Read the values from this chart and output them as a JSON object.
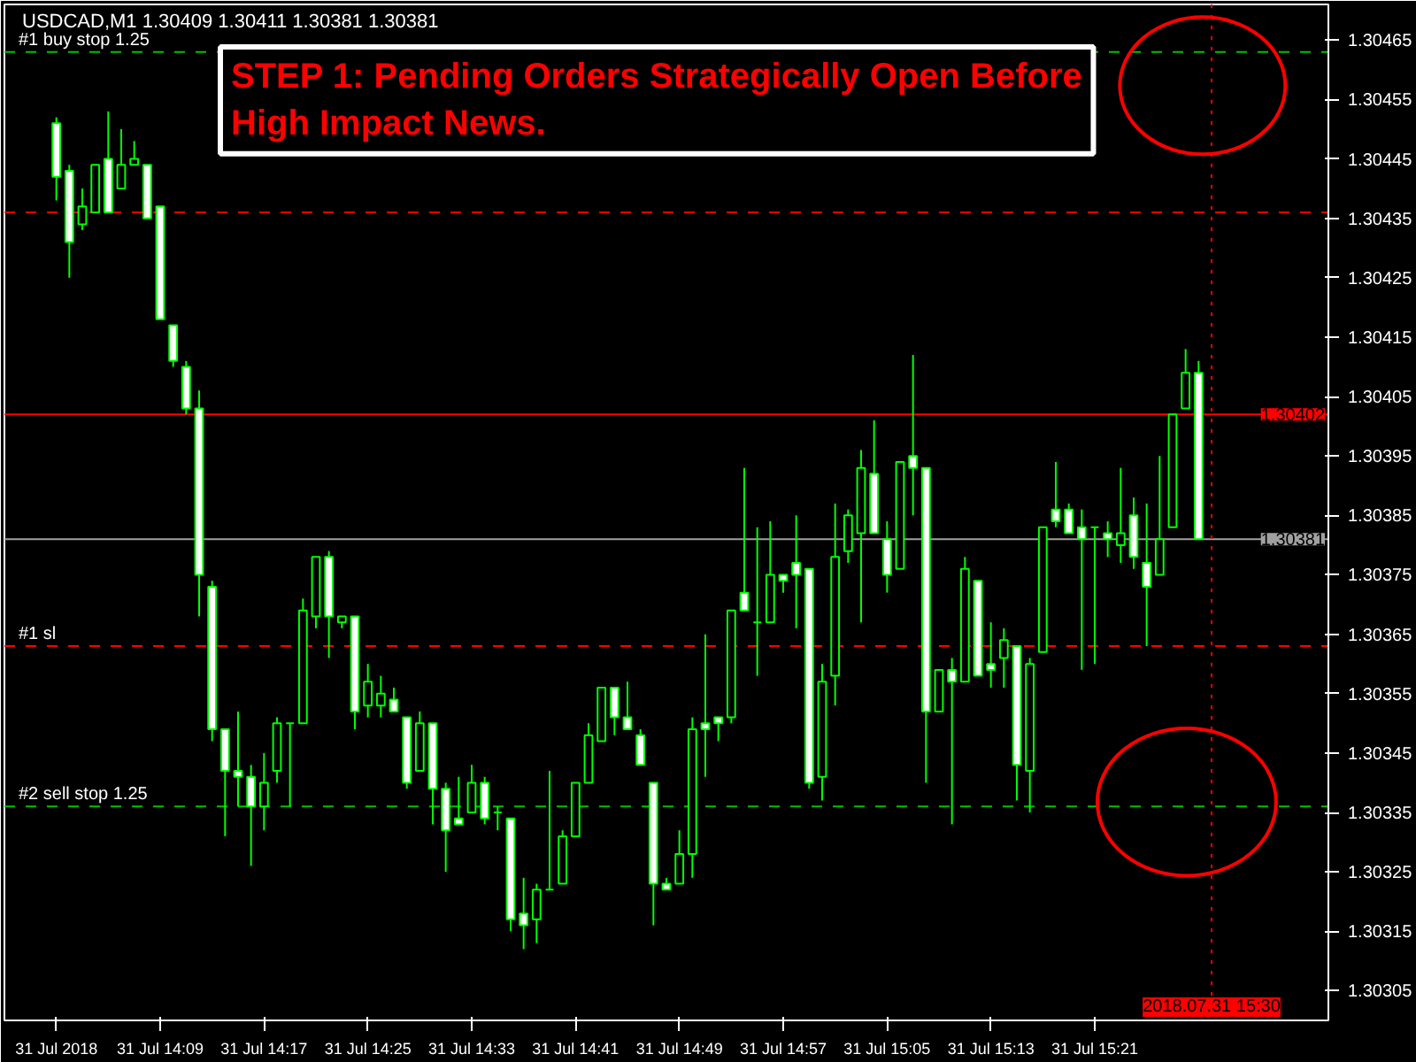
{
  "chart_data": {
    "type": "candlestick",
    "title": "USDCAD,M1  1.30409 1.30411 1.30381 1.30381",
    "annotations": [
      "STEP 1: Pending Orders Strategically Open Before High Impact News."
    ],
    "color": "#00ff00",
    "x": [
      "2018-07-31T14:01",
      "2018-07-31T14:02",
      "2018-07-31T14:03",
      "2018-07-31T14:04",
      "2018-07-31T14:05",
      "2018-07-31T14:06",
      "2018-07-31T14:07",
      "2018-07-31T14:08",
      "2018-07-31T14:09",
      "2018-07-31T14:10",
      "2018-07-31T14:11",
      "2018-07-31T14:12",
      "2018-07-31T14:13",
      "2018-07-31T14:14",
      "2018-07-31T14:15",
      "2018-07-31T14:16",
      "2018-07-31T14:17",
      "2018-07-31T14:18",
      "2018-07-31T14:19",
      "2018-07-31T14:20",
      "2018-07-31T14:21",
      "2018-07-31T14:22",
      "2018-07-31T14:23",
      "2018-07-31T14:24",
      "2018-07-31T14:25",
      "2018-07-31T14:26",
      "2018-07-31T14:27",
      "2018-07-31T14:28",
      "2018-07-31T14:29",
      "2018-07-31T14:30",
      "2018-07-31T14:31",
      "2018-07-31T14:32",
      "2018-07-31T14:33",
      "2018-07-31T14:34",
      "2018-07-31T14:35",
      "2018-07-31T14:36",
      "2018-07-31T14:37",
      "2018-07-31T14:38",
      "2018-07-31T14:39",
      "2018-07-31T14:40",
      "2018-07-31T14:41",
      "2018-07-31T14:42",
      "2018-07-31T14:43",
      "2018-07-31T14:44",
      "2018-07-31T14:45",
      "2018-07-31T14:46",
      "2018-07-31T14:47",
      "2018-07-31T14:48",
      "2018-07-31T14:49",
      "2018-07-31T14:50",
      "2018-07-31T14:51",
      "2018-07-31T14:52",
      "2018-07-31T14:53",
      "2018-07-31T14:54",
      "2018-07-31T14:55",
      "2018-07-31T14:56",
      "2018-07-31T14:57",
      "2018-07-31T14:58",
      "2018-07-31T14:59",
      "2018-07-31T15:00",
      "2018-07-31T15:01",
      "2018-07-31T15:02",
      "2018-07-31T15:03",
      "2018-07-31T15:04",
      "2018-07-31T15:05",
      "2018-07-31T15:06",
      "2018-07-31T15:07",
      "2018-07-31T15:08",
      "2018-07-31T15:09",
      "2018-07-31T15:10",
      "2018-07-31T15:11",
      "2018-07-31T15:12",
      "2018-07-31T15:13",
      "2018-07-31T15:14",
      "2018-07-31T15:15",
      "2018-07-31T15:16",
      "2018-07-31T15:17",
      "2018-07-31T15:18",
      "2018-07-31T15:19",
      "2018-07-31T15:20",
      "2018-07-31T15:21",
      "2018-07-31T15:22",
      "2018-07-31T15:23",
      "2018-07-31T15:24",
      "2018-07-31T15:25",
      "2018-07-31T15:26",
      "2018-07-31T15:27",
      "2018-07-31T15:28",
      "2018-07-31T15:29"
    ],
    "ohlc": [
      [
        1.30451,
        1.30452,
        1.30438,
        1.30442
      ],
      [
        1.30443,
        1.30444,
        1.30425,
        1.30431
      ],
      [
        1.30434,
        1.3044,
        1.30433,
        1.30437
      ],
      [
        1.30436,
        1.30444,
        1.30436,
        1.30444
      ],
      [
        1.30445,
        1.30453,
        1.30436,
        1.30436
      ],
      [
        1.3044,
        1.3045,
        1.3044,
        1.30444
      ],
      [
        1.30444,
        1.30448,
        1.30444,
        1.30445
      ],
      [
        1.30444,
        1.30444,
        1.30435,
        1.30435
      ],
      [
        1.30437,
        1.30437,
        1.30418,
        1.30418
      ],
      [
        1.30417,
        1.30417,
        1.3041,
        1.30411
      ],
      [
        1.3041,
        1.30411,
        1.30402,
        1.30403
      ],
      [
        1.30403,
        1.30406,
        1.30368,
        1.30375
      ],
      [
        1.30373,
        1.30374,
        1.30347,
        1.30349
      ],
      [
        1.30349,
        1.30349,
        1.30331,
        1.30342
      ],
      [
        1.30342,
        1.30352,
        1.30336,
        1.30341
      ],
      [
        1.30341,
        1.30343,
        1.30326,
        1.30336
      ],
      [
        1.30336,
        1.30345,
        1.30332,
        1.3034
      ],
      [
        1.30342,
        1.30351,
        1.3034,
        1.3035
      ],
      [
        1.3035,
        1.3035,
        1.30336,
        1.3035
      ],
      [
        1.3035,
        1.30371,
        1.3035,
        1.30369
      ],
      [
        1.30368,
        1.30378,
        1.30366,
        1.30378
      ],
      [
        1.30378,
        1.30379,
        1.30361,
        1.30368
      ],
      [
        1.30367,
        1.30368,
        1.30366,
        1.30368
      ],
      [
        1.30368,
        1.30368,
        1.30349,
        1.30352
      ],
      [
        1.30353,
        1.3036,
        1.30351,
        1.30357
      ],
      [
        1.30353,
        1.30358,
        1.30351,
        1.30355
      ],
      [
        1.30354,
        1.30356,
        1.30352,
        1.30352
      ],
      [
        1.30351,
        1.30351,
        1.30339,
        1.3034
      ],
      [
        1.30342,
        1.30352,
        1.30342,
        1.3035
      ],
      [
        1.3035,
        1.3035,
        1.30333,
        1.30339
      ],
      [
        1.30339,
        1.3034,
        1.30325,
        1.30332
      ],
      [
        1.30334,
        1.30341,
        1.30333,
        1.30333
      ],
      [
        1.30335,
        1.30343,
        1.30335,
        1.3034
      ],
      [
        1.3034,
        1.30341,
        1.30333,
        1.30334
      ],
      [
        1.30335,
        1.30336,
        1.30332,
        1.30335
      ],
      [
        1.30334,
        1.30334,
        1.30315,
        1.30317
      ],
      [
        1.30318,
        1.30324,
        1.30312,
        1.30316
      ],
      [
        1.30317,
        1.30323,
        1.30313,
        1.30322
      ],
      [
        1.30322,
        1.30342,
        1.30322,
        1.30322
      ],
      [
        1.30323,
        1.30332,
        1.30323,
        1.30331
      ],
      [
        1.30331,
        1.3034,
        1.30331,
        1.3034
      ],
      [
        1.3034,
        1.3035,
        1.3034,
        1.30348
      ],
      [
        1.30347,
        1.30356,
        1.30347,
        1.30356
      ],
      [
        1.30356,
        1.30356,
        1.30348,
        1.30351
      ],
      [
        1.30351,
        1.30357,
        1.30349,
        1.30349
      ],
      [
        1.30348,
        1.30349,
        1.30343,
        1.30343
      ],
      [
        1.3034,
        1.3034,
        1.30316,
        1.30323
      ],
      [
        1.30323,
        1.30324,
        1.30322,
        1.30322
      ],
      [
        1.30323,
        1.30332,
        1.30323,
        1.30328
      ],
      [
        1.30328,
        1.30351,
        1.30324,
        1.30349
      ],
      [
        1.3035,
        1.30365,
        1.30341,
        1.30349
      ],
      [
        1.30351,
        1.30351,
        1.30347,
        1.3035
      ],
      [
        1.30351,
        1.30369,
        1.3035,
        1.30369
      ],
      [
        1.30372,
        1.30393,
        1.30369,
        1.30369
      ],
      [
        1.30367,
        1.30383,
        1.30358,
        1.30367
      ],
      [
        1.30367,
        1.30384,
        1.30367,
        1.30375
      ],
      [
        1.30375,
        1.30375,
        1.30372,
        1.30374
      ],
      [
        1.30377,
        1.30385,
        1.30366,
        1.30375
      ],
      [
        1.30376,
        1.30376,
        1.30339,
        1.3034
      ],
      [
        1.30341,
        1.3036,
        1.30337,
        1.30357
      ],
      [
        1.30358,
        1.30387,
        1.30353,
        1.30378
      ],
      [
        1.30379,
        1.30386,
        1.30377,
        1.30385
      ],
      [
        1.30382,
        1.30396,
        1.30367,
        1.30393
      ],
      [
        1.30392,
        1.30401,
        1.30382,
        1.30382
      ],
      [
        1.30381,
        1.30384,
        1.30372,
        1.30375
      ],
      [
        1.30376,
        1.30394,
        1.30376,
        1.30394
      ],
      [
        1.30395,
        1.30412,
        1.30385,
        1.30393
      ],
      [
        1.30393,
        1.30393,
        1.3034,
        1.30352
      ],
      [
        1.30352,
        1.30359,
        1.30352,
        1.30359
      ],
      [
        1.30359,
        1.30361,
        1.30333,
        1.30357
      ],
      [
        1.30357,
        1.30378,
        1.30357,
        1.30376
      ],
      [
        1.30374,
        1.30374,
        1.30358,
        1.30358
      ],
      [
        1.3036,
        1.30367,
        1.30356,
        1.30359
      ],
      [
        1.30361,
        1.30366,
        1.30356,
        1.30364
      ],
      [
        1.30363,
        1.30363,
        1.30337,
        1.30343
      ],
      [
        1.30342,
        1.30361,
        1.30335,
        1.3036
      ],
      [
        1.30362,
        1.30383,
        1.30362,
        1.30383
      ],
      [
        1.30386,
        1.30394,
        1.30383,
        1.30384
      ],
      [
        1.30386,
        1.30387,
        1.30382,
        1.30382
      ],
      [
        1.30383,
        1.30386,
        1.30359,
        1.30381
      ],
      [
        1.30383,
        1.30383,
        1.3036,
        1.30383
      ],
      [
        1.30382,
        1.30384,
        1.30378,
        1.30381
      ],
      [
        1.3038,
        1.30393,
        1.30377,
        1.30382
      ],
      [
        1.30385,
        1.30388,
        1.30376,
        1.30378
      ],
      [
        1.30377,
        1.30387,
        1.30363,
        1.30373
      ],
      [
        1.30375,
        1.30395,
        1.30375,
        1.30381
      ],
      [
        1.30383,
        1.30402,
        1.30383,
        1.30402
      ],
      [
        1.30403,
        1.30413,
        1.30403,
        1.30409
      ],
      [
        1.30409,
        1.30411,
        1.30381,
        1.30381
      ]
    ],
    "xlim": [
      "2018-07-31T13:57",
      "2018-07-31T15:39"
    ],
    "xticks": [
      {
        "value": "2018-07-31T14:01",
        "label": "31 Jul 2018"
      },
      {
        "value": "2018-07-31T14:09",
        "label": "31 Jul 14:09"
      },
      {
        "value": "2018-07-31T14:17",
        "label": "31 Jul 14:17"
      },
      {
        "value": "2018-07-31T14:25",
        "label": "31 Jul 14:25"
      },
      {
        "value": "2018-07-31T14:33",
        "label": "31 Jul 14:33"
      },
      {
        "value": "2018-07-31T14:41",
        "label": "31 Jul 14:41"
      },
      {
        "value": "2018-07-31T14:49",
        "label": "31 Jul 14:49"
      },
      {
        "value": "2018-07-31T14:57",
        "label": "31 Jul 14:57"
      },
      {
        "value": "2018-07-31T15:05",
        "label": "31 Jul 15:05"
      },
      {
        "value": "2018-07-31T15:13",
        "label": "31 Jul 15:13"
      },
      {
        "value": "2018-07-31T15:21",
        "label": "31 Jul 15:21"
      }
    ],
    "ylim": [
      1.303,
      1.30471
    ],
    "yticks": [
      1.30305,
      1.30315,
      1.30325,
      1.30335,
      1.30345,
      1.30355,
      1.30365,
      1.30375,
      1.30385,
      1.30395,
      1.30405,
      1.30415,
      1.30425,
      1.30435,
      1.30445,
      1.30455,
      1.30465
    ],
    "ref_lines": [
      {
        "axis": "y",
        "value": 1.30463,
        "label": "#1 buy stop 1.25",
        "color": "#00c000",
        "line_style": "dashed"
      },
      {
        "axis": "y",
        "value": 1.30436,
        "color": "#ff0000",
        "line_style": "dashed"
      },
      {
        "axis": "y",
        "value": 1.30402,
        "label": "1.30402",
        "color": "#ff0000",
        "line_style": "solid"
      },
      {
        "axis": "y",
        "value": 1.30381,
        "label": "1.30381",
        "color": "#a0a0a0",
        "line_style": "solid"
      },
      {
        "axis": "y",
        "value": 1.30363,
        "label": "#1 sl",
        "color": "#ff0000",
        "line_style": "dashed"
      },
      {
        "axis": "y",
        "value": 1.30336,
        "label": "#2 sell stop 1.25",
        "color": "#00c000",
        "line_style": "dashed"
      },
      {
        "axis": "x",
        "value": "2018-07-31T15:30",
        "label": "2018.07.31 15:30",
        "color": "#ff0000",
        "line_style": "dotted"
      }
    ],
    "grid": false
  }
}
